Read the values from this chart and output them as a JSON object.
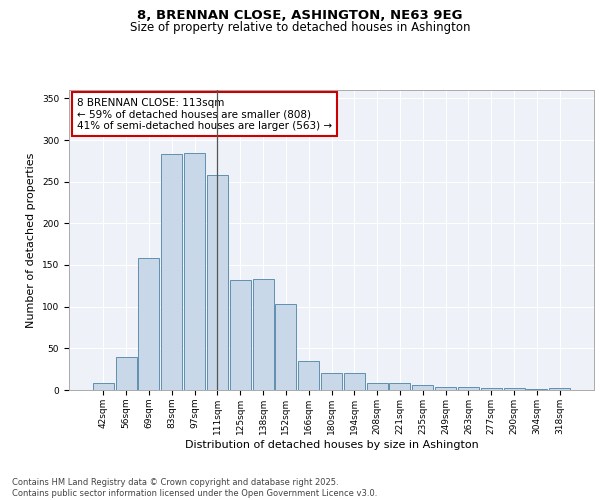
{
  "title1": "8, BRENNAN CLOSE, ASHINGTON, NE63 9EG",
  "title2": "Size of property relative to detached houses in Ashington",
  "xlabel": "Distribution of detached houses by size in Ashington",
  "ylabel": "Number of detached properties",
  "categories": [
    "42sqm",
    "56sqm",
    "69sqm",
    "83sqm",
    "97sqm",
    "111sqm",
    "125sqm",
    "138sqm",
    "152sqm",
    "166sqm",
    "180sqm",
    "194sqm",
    "208sqm",
    "221sqm",
    "235sqm",
    "249sqm",
    "263sqm",
    "277sqm",
    "290sqm",
    "304sqm",
    "318sqm"
  ],
  "values": [
    8,
    40,
    158,
    283,
    285,
    258,
    132,
    133,
    103,
    35,
    20,
    20,
    8,
    8,
    6,
    4,
    4,
    2,
    2,
    1,
    2
  ],
  "bar_color": "#c8d8e8",
  "bar_edge_color": "#6090b0",
  "highlight_index": 5,
  "highlight_line_color": "#555555",
  "annotation_text": "8 BRENNAN CLOSE: 113sqm\n← 59% of detached houses are smaller (808)\n41% of semi-detached houses are larger (563) →",
  "annotation_box_color": "#ffffff",
  "annotation_box_edge_color": "#cc0000",
  "ylim": [
    0,
    360
  ],
  "yticks": [
    0,
    50,
    100,
    150,
    200,
    250,
    300,
    350
  ],
  "background_color": "#eef2f8",
  "grid_color": "#ffffff",
  "footer_text": "Contains HM Land Registry data © Crown copyright and database right 2025.\nContains public sector information licensed under the Open Government Licence v3.0.",
  "title_fontsize": 9.5,
  "subtitle_fontsize": 8.5,
  "tick_fontsize": 6.5,
  "ylabel_fontsize": 8,
  "xlabel_fontsize": 8,
  "annotation_fontsize": 7.5,
  "footer_fontsize": 6.0
}
